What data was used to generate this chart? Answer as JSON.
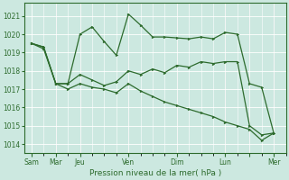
{
  "xlabel": "Pression niveau de la mer( hPa )",
  "bg_color": "#cce8e0",
  "grid_color": "#ffffff",
  "line_color": "#2d6b2d",
  "yticks": [
    1014,
    1015,
    1016,
    1017,
    1018,
    1019,
    1020,
    1021
  ],
  "ylim": [
    1013.5,
    1021.7
  ],
  "xlim": [
    -0.3,
    10.3
  ],
  "xtick_positions": [
    0,
    1,
    2,
    4,
    6,
    8,
    9,
    10
  ],
  "xtick_labels": [
    "Sam",
    "Mar",
    "Jeu",
    "Ven",
    "Dim",
    "Lun",
    "",
    "Mer"
  ],
  "s1_x": [
    0,
    0.5,
    1,
    1.5,
    2,
    2.5,
    3,
    3.5,
    4,
    4.5,
    5,
    5.5,
    6,
    6.5,
    7,
    7.5,
    8,
    8.5,
    9,
    9.5,
    10
  ],
  "s1_y": [
    1019.5,
    1019.3,
    1017.3,
    1017.3,
    1020.0,
    1020.4,
    1019.6,
    1018.85,
    1021.1,
    1020.5,
    1019.85,
    1019.85,
    1019.8,
    1019.75,
    1019.85,
    1019.75,
    1020.1,
    1020.0,
    1017.3,
    1017.1,
    1014.6
  ],
  "s2_x": [
    0,
    0.5,
    1,
    1.5,
    2,
    2.5,
    3,
    3.5,
    4,
    4.5,
    5,
    5.5,
    6,
    6.5,
    7,
    7.5,
    8,
    8.5,
    9,
    9.5,
    10
  ],
  "s2_y": [
    1019.5,
    1019.3,
    1017.3,
    1017.3,
    1017.8,
    1017.5,
    1017.2,
    1017.4,
    1018.0,
    1017.8,
    1018.1,
    1017.9,
    1018.3,
    1018.2,
    1018.5,
    1018.4,
    1018.5,
    1018.5,
    1015.0,
    1014.5,
    1014.6
  ],
  "s3_x": [
    0,
    0.5,
    1,
    1.5,
    2,
    2.5,
    3,
    3.5,
    4,
    4.5,
    5,
    5.5,
    6,
    6.5,
    7,
    7.5,
    8,
    8.5,
    9,
    9.5,
    10
  ],
  "s3_y": [
    1019.5,
    1019.2,
    1017.3,
    1017.0,
    1017.3,
    1017.1,
    1017.0,
    1016.8,
    1017.3,
    1016.9,
    1016.6,
    1016.3,
    1016.1,
    1015.9,
    1015.7,
    1015.5,
    1015.2,
    1015.0,
    1014.8,
    1014.2,
    1014.6
  ],
  "vlines": [
    1,
    2,
    4,
    6,
    8,
    9,
    10
  ],
  "marker_size": 2.0,
  "line_width": 0.9,
  "font_size_tick": 5.5,
  "font_size_xlabel": 6.5
}
